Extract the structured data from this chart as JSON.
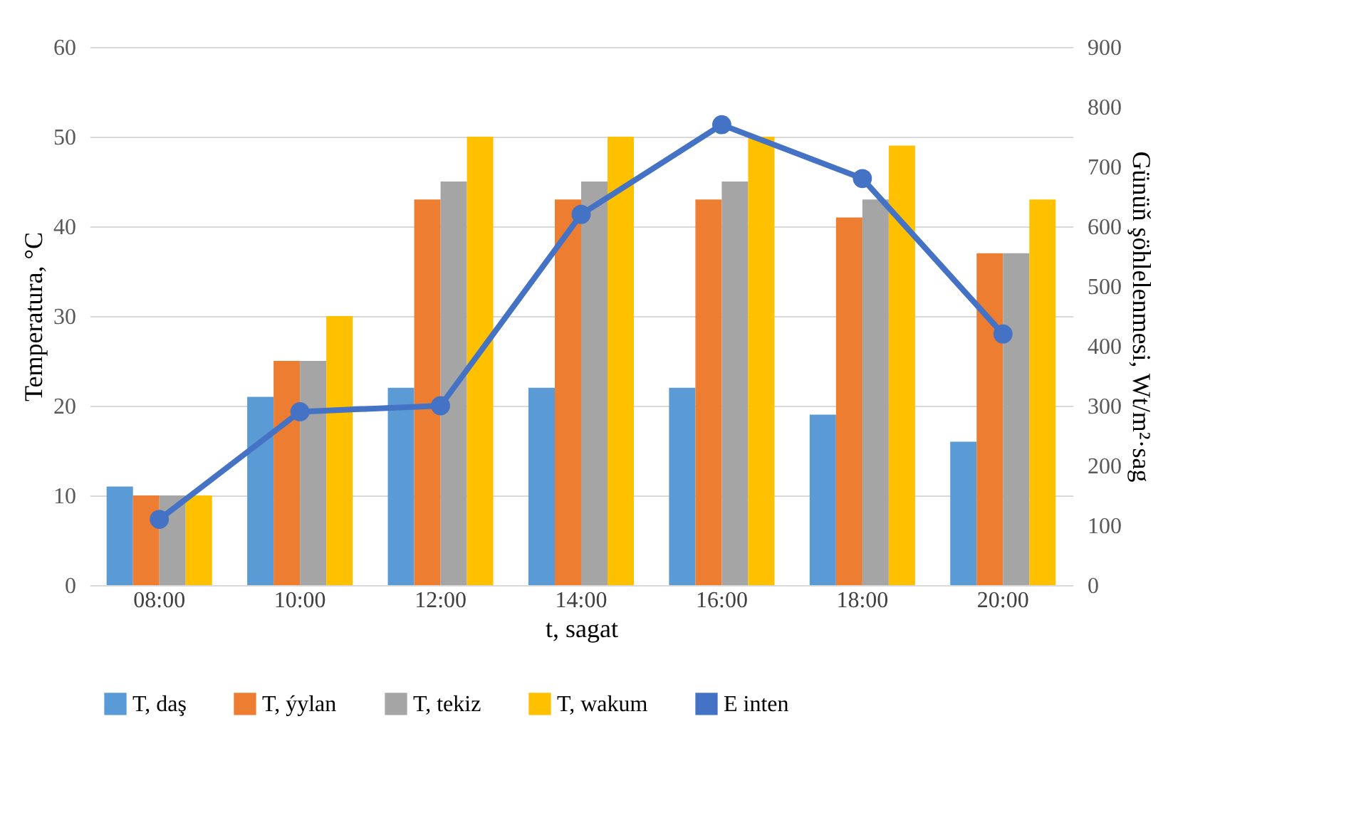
{
  "chart_data": {
    "type": "bar",
    "xlabel": "t, sagat",
    "ylabel": "Temperatura, °C",
    "y2label": "Günüň şöhlelenmesi, Wt/m²·sag",
    "categories": [
      "08:00",
      "10:00",
      "12:00",
      "14:00",
      "16:00",
      "18:00",
      "20:00"
    ],
    "series": [
      {
        "name": "T, daş",
        "color": "#5b9bd5",
        "values": [
          11,
          21,
          22,
          22,
          22,
          19,
          16
        ]
      },
      {
        "name": "T, ýylan",
        "color": "#ed7d31",
        "values": [
          10,
          25,
          43,
          43,
          43,
          41,
          37
        ]
      },
      {
        "name": "T, tekiz",
        "color": "#a5a5a5",
        "values": [
          10,
          25,
          45,
          45,
          45,
          43,
          37
        ]
      },
      {
        "name": "T, wakum",
        "color": "#ffc000",
        "values": [
          10,
          30,
          50,
          50,
          50,
          49,
          43
        ]
      },
      {
        "name": "E inten",
        "type": "line",
        "axis": "y2",
        "marker": "circle",
        "color": "#4472c4",
        "values": [
          110,
          290,
          300,
          620,
          770,
          680,
          420
        ]
      }
    ],
    "ylim": [
      0,
      60
    ],
    "yticks": [
      0,
      10,
      20,
      30,
      40,
      50,
      60
    ],
    "y2lim": [
      0,
      900
    ],
    "y2ticks": [
      0,
      100,
      200,
      300,
      400,
      500,
      600,
      700,
      800,
      900
    ],
    "grid": "y",
    "legend": "bottom"
  }
}
